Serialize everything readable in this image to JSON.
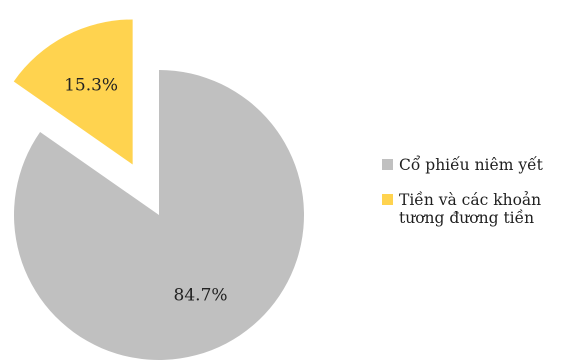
{
  "chart_data": {
    "type": "pie",
    "title": "",
    "slices": [
      {
        "label": "Cổ phiếu niêm yết",
        "value": 84.7,
        "value_label": "84.7%",
        "color": "#c0c0c0",
        "exploded": false
      },
      {
        "label": "Tiền và các khoản tương đương tiền",
        "value": 15.3,
        "value_label": "15.3%",
        "color": "#ffd34f",
        "exploded": true
      }
    ],
    "legend": {
      "position": "right",
      "items": [
        {
          "label": "Cổ phiếu niêm yết",
          "color": "#c0c0c0"
        },
        {
          "label": "Tiền và các khoản tương đương tiền",
          "color": "#ffd34f"
        }
      ]
    }
  }
}
